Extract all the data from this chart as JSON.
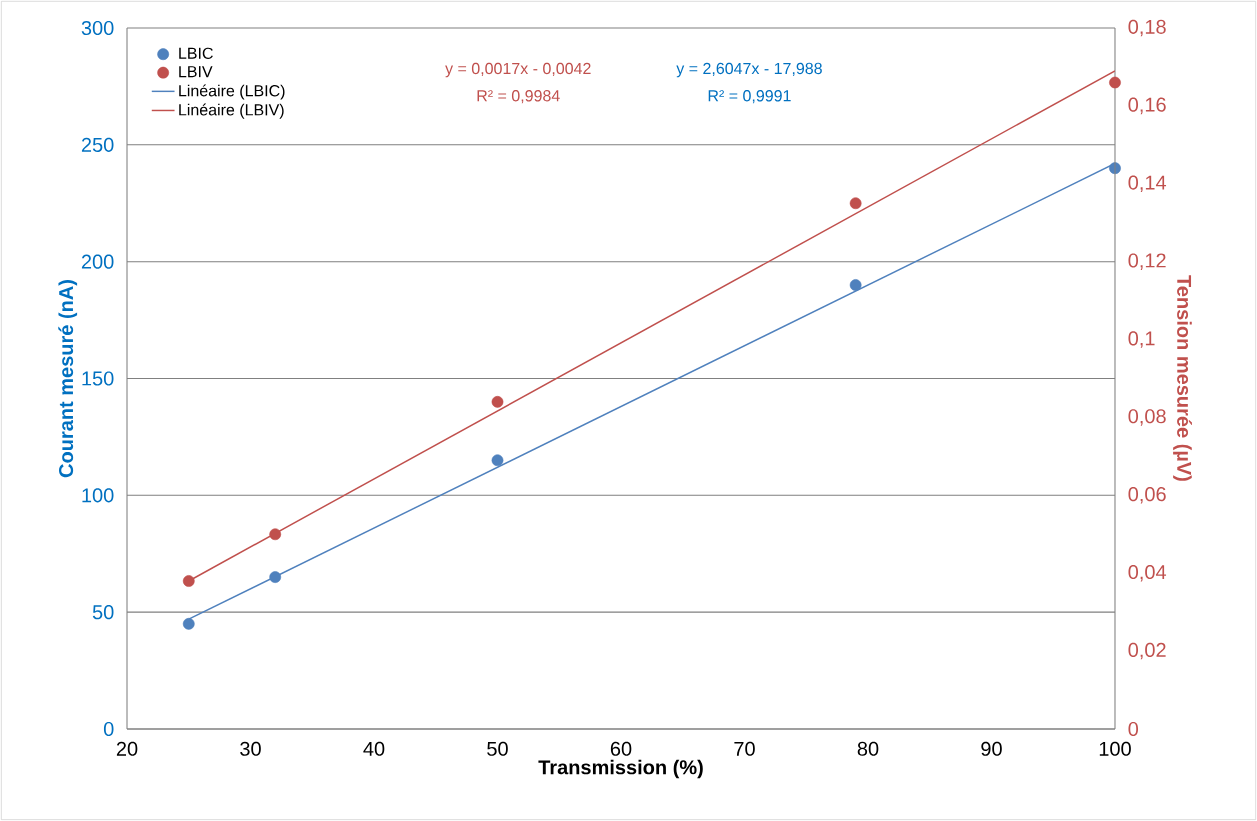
{
  "chart_data": {
    "type": "scatter",
    "xlabel": "Transmission (%)",
    "ylabel": "Courant mesuré (nA)",
    "y2label": "Tension mesurée (µV)",
    "xlim": [
      20,
      100
    ],
    "xticks": [
      20,
      30,
      40,
      50,
      60,
      70,
      80,
      90,
      100
    ],
    "ylim": [
      0,
      300
    ],
    "yticks": [
      0,
      50,
      100,
      150,
      200,
      250,
      300
    ],
    "y2lim": [
      0,
      0.18
    ],
    "y2ticks": [
      {
        "value": 0,
        "label": "0"
      },
      {
        "value": 0.02,
        "label": "0,02"
      },
      {
        "value": 0.04,
        "label": "0,04"
      },
      {
        "value": 0.06,
        "label": "0,06"
      },
      {
        "value": 0.08,
        "label": "0,08"
      },
      {
        "value": 0.1,
        "label": "0,1"
      },
      {
        "value": 0.12,
        "label": "0,12"
      },
      {
        "value": 0.14,
        "label": "0,14"
      },
      {
        "value": 0.16,
        "label": "0,16"
      },
      {
        "value": 0.18,
        "label": "0,18"
      }
    ],
    "grid": "y",
    "legend": "top left",
    "series": [
      {
        "name": "LBIC",
        "marker": "circle",
        "color": "#4f81bd",
        "x": [
          25,
          32,
          50,
          79,
          100
        ],
        "values": [
          45,
          65,
          115,
          190,
          240
        ]
      },
      {
        "name": "LBIV",
        "marker": "circle",
        "axis": "y2",
        "color": "#c0504d",
        "x": [
          25,
          32,
          50,
          79,
          100
        ],
        "values": [
          0.038,
          0.05,
          0.084,
          0.135,
          0.166
        ]
      },
      {
        "name": "Linéaire (LBIC)",
        "type": "line",
        "marker": "none",
        "color": "#4f81bd",
        "x": [
          25,
          100
        ],
        "values": [
          47,
          242
        ]
      },
      {
        "name": "Linéaire (LBIV)",
        "type": "line",
        "marker": "none",
        "axis": "y2",
        "color": "#c0504d",
        "x": [
          25,
          100
        ],
        "values": [
          0.038,
          0.169
        ]
      }
    ],
    "annotations": [
      "y = 0,0017x - 0,0042",
      "R² = 0,9984",
      "y = 2,6047x - 17,988",
      "R² = 0,9991"
    ]
  }
}
